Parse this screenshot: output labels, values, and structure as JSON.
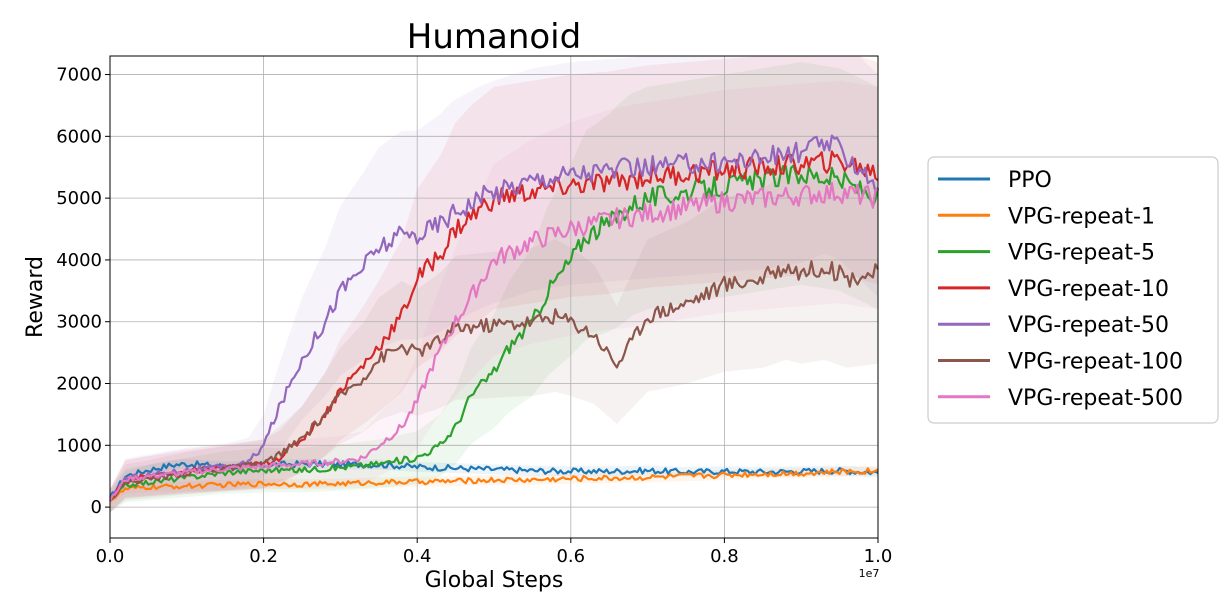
{
  "chart_data": {
    "type": "line",
    "title": "Humanoid",
    "xlabel": "Global Steps",
    "ylabel": "Reward",
    "x_scale_label": "1e7",
    "xlim": [
      0.0,
      1.0
    ],
    "ylim": [
      -500,
      7300
    ],
    "x_ticks": [
      "0.0",
      "0.2",
      "0.4",
      "0.6",
      "0.8",
      "1.0"
    ],
    "y_ticks": [
      "0",
      "1000",
      "2000",
      "3000",
      "4000",
      "5000",
      "6000",
      "7000"
    ],
    "grid": true,
    "legend_position": "right",
    "series": [
      {
        "name": "PPO",
        "color": "#1f77b4",
        "x": [
          0.0,
          0.02,
          0.05,
          0.08,
          0.1,
          0.15,
          0.2,
          0.25,
          0.3,
          0.35,
          0.4,
          0.45,
          0.5,
          0.55,
          0.6,
          0.65,
          0.7,
          0.75,
          0.8,
          0.85,
          0.9,
          0.95,
          1.0
        ],
        "values": [
          150,
          500,
          600,
          680,
          700,
          660,
          680,
          700,
          690,
          690,
          650,
          630,
          610,
          590,
          580,
          580,
          590,
          570,
          580,
          570,
          580,
          590,
          560
        ]
      },
      {
        "name": "VPG-repeat-1",
        "color": "#ff7f0e",
        "x": [
          0.0,
          0.02,
          0.05,
          0.1,
          0.15,
          0.2,
          0.25,
          0.3,
          0.35,
          0.4,
          0.45,
          0.5,
          0.55,
          0.6,
          0.65,
          0.7,
          0.75,
          0.8,
          0.85,
          0.9,
          0.95,
          1.0
        ],
        "values": [
          100,
          290,
          320,
          340,
          360,
          380,
          370,
          380,
          400,
          410,
          420,
          440,
          440,
          460,
          470,
          480,
          500,
          520,
          540,
          550,
          570,
          590
        ]
      },
      {
        "name": "VPG-repeat-5",
        "color": "#2ca02c",
        "x": [
          0.0,
          0.02,
          0.05,
          0.1,
          0.15,
          0.2,
          0.25,
          0.3,
          0.35,
          0.4,
          0.43,
          0.45,
          0.47,
          0.5,
          0.52,
          0.55,
          0.57,
          0.6,
          0.62,
          0.65,
          0.68,
          0.7,
          0.75,
          0.8,
          0.85,
          0.9,
          0.95,
          1.0
        ],
        "values": [
          100,
          350,
          400,
          480,
          560,
          600,
          600,
          640,
          700,
          800,
          1000,
          1300,
          1800,
          2200,
          2600,
          3000,
          3500,
          4000,
          4400,
          4600,
          4900,
          5000,
          5100,
          5200,
          5300,
          5400,
          5300,
          5000
        ]
      },
      {
        "name": "VPG-repeat-10",
        "color": "#d62728",
        "x": [
          0.0,
          0.02,
          0.05,
          0.1,
          0.15,
          0.2,
          0.22,
          0.25,
          0.28,
          0.3,
          0.33,
          0.35,
          0.38,
          0.4,
          0.43,
          0.45,
          0.48,
          0.5,
          0.55,
          0.6,
          0.65,
          0.7,
          0.75,
          0.8,
          0.85,
          0.9,
          0.95,
          1.0
        ],
        "values": [
          100,
          450,
          500,
          580,
          640,
          700,
          800,
          1100,
          1500,
          1900,
          2300,
          2600,
          3100,
          3700,
          4100,
          4500,
          4800,
          5000,
          5100,
          5200,
          5250,
          5350,
          5400,
          5450,
          5500,
          5550,
          5600,
          5400
        ]
      },
      {
        "name": "VPG-repeat-50",
        "color": "#9467bd",
        "x": [
          0.0,
          0.02,
          0.05,
          0.1,
          0.15,
          0.18,
          0.2,
          0.22,
          0.25,
          0.28,
          0.3,
          0.33,
          0.35,
          0.38,
          0.4,
          0.43,
          0.45,
          0.48,
          0.5,
          0.55,
          0.6,
          0.65,
          0.7,
          0.75,
          0.8,
          0.85,
          0.9,
          0.93,
          0.95,
          1.0
        ],
        "values": [
          100,
          470,
          520,
          600,
          650,
          720,
          1000,
          1600,
          2400,
          3000,
          3500,
          3900,
          4200,
          4400,
          4400,
          4600,
          4800,
          5000,
          5100,
          5300,
          5400,
          5450,
          5500,
          5550,
          5600,
          5650,
          5750,
          5900,
          5800,
          5200
        ]
      },
      {
        "name": "VPG-repeat-100",
        "color": "#8c564b",
        "x": [
          0.0,
          0.02,
          0.05,
          0.1,
          0.15,
          0.2,
          0.22,
          0.25,
          0.28,
          0.3,
          0.33,
          0.35,
          0.38,
          0.4,
          0.43,
          0.45,
          0.5,
          0.55,
          0.58,
          0.6,
          0.63,
          0.66,
          0.7,
          0.75,
          0.8,
          0.85,
          0.88,
          0.9,
          0.93,
          0.96,
          1.0
        ],
        "values": [
          100,
          400,
          450,
          550,
          620,
          700,
          850,
          1100,
          1500,
          1800,
          2100,
          2400,
          2600,
          2500,
          2700,
          2900,
          2950,
          3000,
          3100,
          3000,
          2800,
          2300,
          3100,
          3300,
          3600,
          3700,
          3900,
          3800,
          3900,
          3700,
          3800
        ]
      },
      {
        "name": "VPG-repeat-500",
        "color": "#e377c2",
        "x": [
          0.0,
          0.02,
          0.05,
          0.1,
          0.15,
          0.2,
          0.25,
          0.3,
          0.33,
          0.35,
          0.38,
          0.4,
          0.42,
          0.45,
          0.48,
          0.5,
          0.55,
          0.6,
          0.65,
          0.7,
          0.75,
          0.8,
          0.85,
          0.9,
          0.95,
          1.0
        ],
        "values": [
          100,
          450,
          500,
          560,
          620,
          660,
          700,
          740,
          800,
          1000,
          1300,
          1700,
          2300,
          3000,
          3600,
          4000,
          4300,
          4500,
          4650,
          4750,
          4850,
          4950,
          5000,
          5050,
          5100,
          5000
        ]
      }
    ]
  }
}
